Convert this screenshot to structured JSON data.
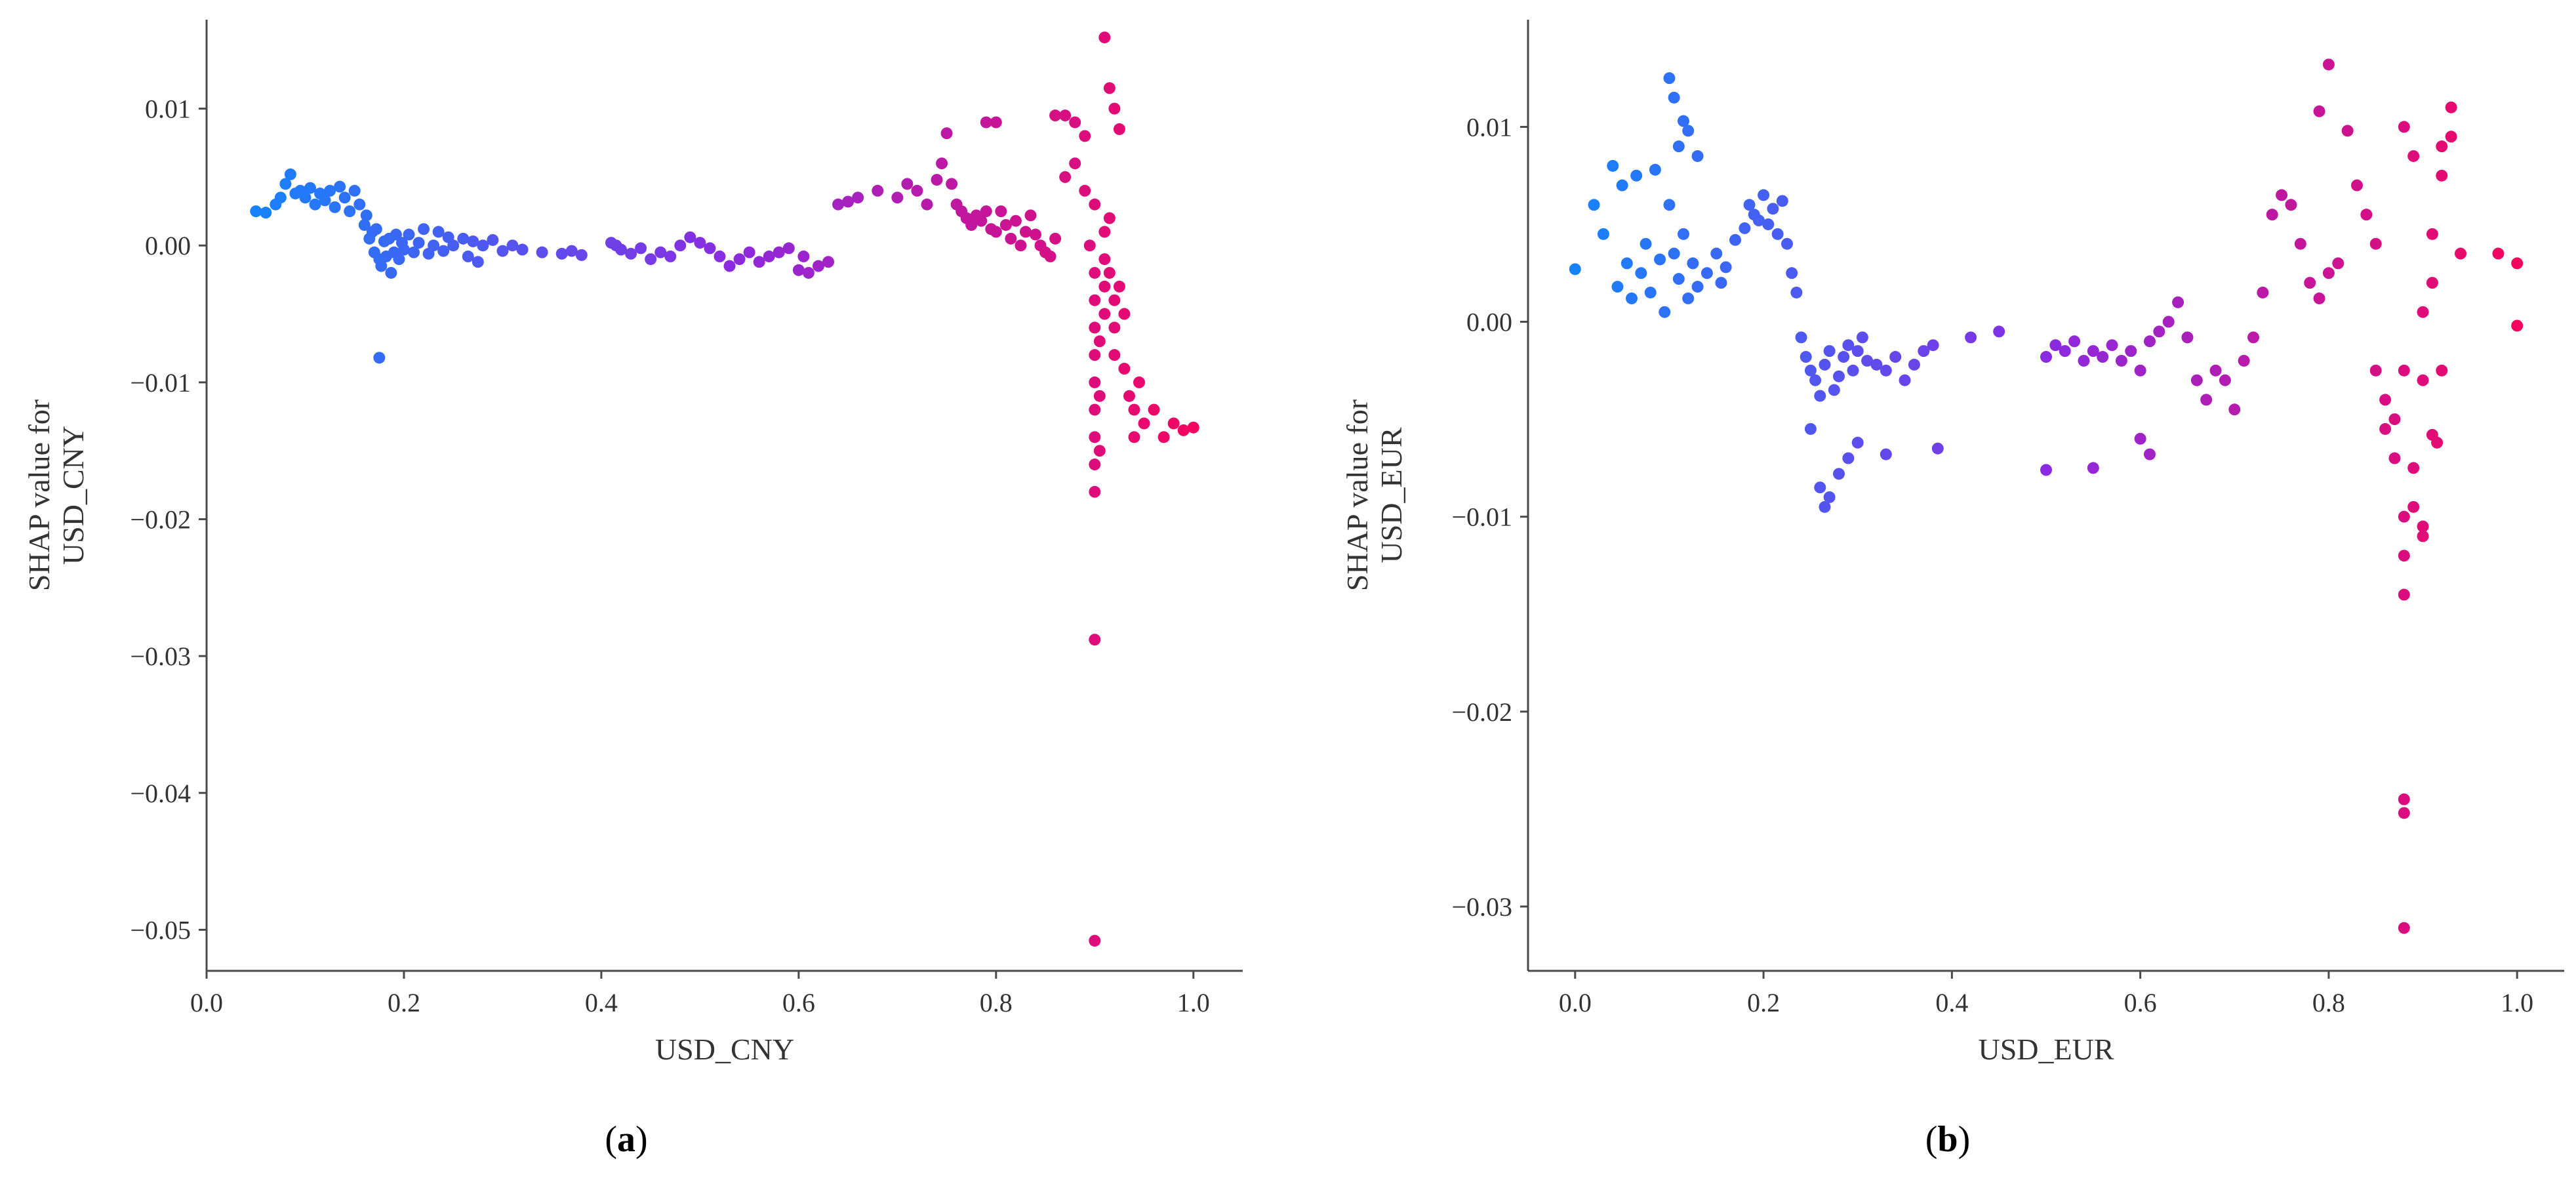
{
  "chart_data": [
    {
      "type": "scatter",
      "panel_label": "a",
      "xlabel": "USD_CNY",
      "ylabel": [
        "SHAP value for",
        "USD_CNY"
      ],
      "xlim": [
        0.0,
        1.05
      ],
      "ylim": [
        -0.053,
        0.0165
      ],
      "xticks": [
        0.0,
        0.2,
        0.4,
        0.6,
        0.8,
        1.0
      ],
      "xtick_labels": [
        "0.0",
        "0.2",
        "0.4",
        "0.6",
        "0.8",
        "1.0"
      ],
      "yticks": [
        0.01,
        0.0,
        -0.01,
        -0.02,
        -0.03,
        -0.04,
        -0.05
      ],
      "ytick_labels": [
        "0.01",
        "0.00",
        "−0.01",
        "−0.02",
        "−0.03",
        "−0.04",
        "−0.05"
      ],
      "grid": false,
      "colormap": [
        "#0a8cff",
        "#8a2be2",
        "#ff0051"
      ],
      "points": [
        [
          0.05,
          0.0025
        ],
        [
          0.06,
          0.0024
        ],
        [
          0.07,
          0.003
        ],
        [
          0.075,
          0.0035
        ],
        [
          0.08,
          0.0045
        ],
        [
          0.085,
          0.0052
        ],
        [
          0.09,
          0.0038
        ],
        [
          0.095,
          0.004
        ],
        [
          0.1,
          0.0035
        ],
        [
          0.105,
          0.0042
        ],
        [
          0.11,
          0.003
        ],
        [
          0.115,
          0.0038
        ],
        [
          0.12,
          0.0033
        ],
        [
          0.125,
          0.004
        ],
        [
          0.13,
          0.0028
        ],
        [
          0.135,
          0.0043
        ],
        [
          0.14,
          0.0035
        ],
        [
          0.145,
          0.0025
        ],
        [
          0.15,
          0.004
        ],
        [
          0.155,
          0.003
        ],
        [
          0.16,
          0.0015
        ],
        [
          0.162,
          0.0022
        ],
        [
          0.165,
          0.0005
        ],
        [
          0.168,
          0.001
        ],
        [
          0.17,
          -0.0005
        ],
        [
          0.172,
          0.0012
        ],
        [
          0.175,
          -0.001
        ],
        [
          0.177,
          -0.0015
        ],
        [
          0.18,
          0.0003
        ],
        [
          0.182,
          -0.0008
        ],
        [
          0.185,
          0.0005
        ],
        [
          0.187,
          -0.002
        ],
        [
          0.19,
          -0.0005
        ],
        [
          0.192,
          0.0008
        ],
        [
          0.195,
          -0.001
        ],
        [
          0.198,
          0.0002
        ],
        [
          0.2,
          -0.0003
        ],
        [
          0.205,
          0.0008
        ],
        [
          0.21,
          -0.0005
        ],
        [
          0.215,
          0.0002
        ],
        [
          0.22,
          0.0012
        ],
        [
          0.225,
          -0.0006
        ],
        [
          0.23,
          0.0
        ],
        [
          0.235,
          0.001
        ],
        [
          0.24,
          -0.0004
        ],
        [
          0.245,
          0.0006
        ],
        [
          0.25,
          0.0
        ],
        [
          0.26,
          0.0005
        ],
        [
          0.265,
          -0.0008
        ],
        [
          0.27,
          0.0003
        ],
        [
          0.275,
          -0.0012
        ],
        [
          0.28,
          0.0
        ],
        [
          0.29,
          0.0004
        ],
        [
          0.3,
          -0.0004
        ],
        [
          0.31,
          0.0
        ],
        [
          0.32,
          -0.0003
        ],
        [
          0.34,
          -0.0005
        ],
        [
          0.36,
          -0.0006
        ],
        [
          0.37,
          -0.0004
        ],
        [
          0.38,
          -0.0007
        ],
        [
          0.41,
          0.0002
        ],
        [
          0.415,
          0.0
        ],
        [
          0.42,
          -0.0003
        ],
        [
          0.43,
          -0.0006
        ],
        [
          0.44,
          -0.0002
        ],
        [
          0.45,
          -0.001
        ],
        [
          0.46,
          -0.0005
        ],
        [
          0.47,
          -0.0008
        ],
        [
          0.48,
          0.0
        ],
        [
          0.49,
          0.0006
        ],
        [
          0.5,
          0.0002
        ],
        [
          0.51,
          -0.0002
        ],
        [
          0.52,
          -0.0008
        ],
        [
          0.53,
          -0.0015
        ],
        [
          0.54,
          -0.001
        ],
        [
          0.55,
          -0.0005
        ],
        [
          0.56,
          -0.0012
        ],
        [
          0.57,
          -0.0008
        ],
        [
          0.58,
          -0.0005
        ],
        [
          0.59,
          -0.0002
        ],
        [
          0.6,
          -0.0018
        ],
        [
          0.605,
          -0.0008
        ],
        [
          0.61,
          -0.002
        ],
        [
          0.62,
          -0.0015
        ],
        [
          0.63,
          -0.0012
        ],
        [
          0.175,
          -0.0082
        ],
        [
          0.64,
          0.003
        ],
        [
          0.65,
          0.0032
        ],
        [
          0.66,
          0.0035
        ],
        [
          0.68,
          0.004
        ],
        [
          0.7,
          0.0035
        ],
        [
          0.71,
          0.0045
        ],
        [
          0.72,
          0.004
        ],
        [
          0.73,
          0.003
        ],
        [
          0.74,
          0.0048
        ],
        [
          0.745,
          0.006
        ],
        [
          0.75,
          0.0082
        ],
        [
          0.755,
          0.0045
        ],
        [
          0.76,
          0.003
        ],
        [
          0.765,
          0.0025
        ],
        [
          0.77,
          0.002
        ],
        [
          0.775,
          0.0015
        ],
        [
          0.78,
          0.0022
        ],
        [
          0.785,
          0.0018
        ],
        [
          0.79,
          0.0025
        ],
        [
          0.795,
          0.0012
        ],
        [
          0.8,
          0.001
        ],
        [
          0.805,
          0.0025
        ],
        [
          0.81,
          0.0015
        ],
        [
          0.815,
          0.0005
        ],
        [
          0.82,
          0.0018
        ],
        [
          0.825,
          0.0
        ],
        [
          0.83,
          0.001
        ],
        [
          0.835,
          0.0022
        ],
        [
          0.84,
          0.0008
        ],
        [
          0.845,
          0.0
        ],
        [
          0.85,
          -0.0005
        ],
        [
          0.855,
          -0.0008
        ],
        [
          0.86,
          0.0005
        ],
        [
          0.79,
          0.009
        ],
        [
          0.8,
          0.009
        ],
        [
          0.86,
          0.0095
        ],
        [
          0.87,
          0.0095
        ],
        [
          0.88,
          0.009
        ],
        [
          0.89,
          0.008
        ],
        [
          0.91,
          0.0152
        ],
        [
          0.915,
          0.0115
        ],
        [
          0.92,
          0.01
        ],
        [
          0.925,
          0.0085
        ],
        [
          0.87,
          0.005
        ],
        [
          0.88,
          0.006
        ],
        [
          0.89,
          0.004
        ],
        [
          0.9,
          0.003
        ],
        [
          0.895,
          0.0
        ],
        [
          0.9,
          -0.002
        ],
        [
          0.9,
          -0.004
        ],
        [
          0.9,
          -0.006
        ],
        [
          0.9,
          -0.008
        ],
        [
          0.9,
          -0.01
        ],
        [
          0.9,
          -0.012
        ],
        [
          0.9,
          -0.014
        ],
        [
          0.9,
          -0.016
        ],
        [
          0.9,
          -0.018
        ],
        [
          0.905,
          -0.015
        ],
        [
          0.905,
          -0.011
        ],
        [
          0.905,
          -0.007
        ],
        [
          0.91,
          -0.005
        ],
        [
          0.91,
          -0.003
        ],
        [
          0.91,
          -0.001
        ],
        [
          0.91,
          0.001
        ],
        [
          0.915,
          0.002
        ],
        [
          0.915,
          -0.002
        ],
        [
          0.92,
          -0.004
        ],
        [
          0.92,
          -0.006
        ],
        [
          0.92,
          -0.008
        ],
        [
          0.925,
          -0.003
        ],
        [
          0.93,
          -0.005
        ],
        [
          0.93,
          -0.009
        ],
        [
          0.935,
          -0.011
        ],
        [
          0.94,
          -0.012
        ],
        [
          0.94,
          -0.014
        ],
        [
          0.945,
          -0.01
        ],
        [
          0.95,
          -0.013
        ],
        [
          0.96,
          -0.012
        ],
        [
          0.97,
          -0.014
        ],
        [
          0.98,
          -0.013
        ],
        [
          0.99,
          -0.0135
        ],
        [
          1.0,
          -0.0133
        ],
        [
          0.9,
          -0.0288
        ],
        [
          0.9,
          -0.0508
        ]
      ]
    },
    {
      "type": "scatter",
      "panel_label": "b",
      "xlabel": "USD_EUR",
      "ylabel": [
        "SHAP value for",
        "USD_EUR"
      ],
      "xlim": [
        -0.05,
        1.05
      ],
      "ylim": [
        -0.0333,
        0.0155
      ],
      "xticks": [
        0.0,
        0.2,
        0.4,
        0.6,
        0.8,
        1.0
      ],
      "xtick_labels": [
        "0.0",
        "0.2",
        "0.4",
        "0.6",
        "0.8",
        "1.0"
      ],
      "yticks": [
        0.01,
        0.0,
        -0.01,
        -0.02,
        -0.03
      ],
      "ytick_labels": [
        "0.01",
        "0.00",
        "−0.01",
        "−0.02",
        "−0.03"
      ],
      "grid": false,
      "colormap": [
        "#0a8cff",
        "#8a2be2",
        "#ff0051"
      ],
      "points": [
        [
          0.0,
          0.0027
        ],
        [
          0.02,
          0.006
        ],
        [
          0.03,
          0.0045
        ],
        [
          0.04,
          0.008
        ],
        [
          0.045,
          0.0018
        ],
        [
          0.05,
          0.007
        ],
        [
          0.055,
          0.003
        ],
        [
          0.06,
          0.0012
        ],
        [
          0.065,
          0.0075
        ],
        [
          0.07,
          0.0025
        ],
        [
          0.075,
          0.004
        ],
        [
          0.08,
          0.0015
        ],
        [
          0.085,
          0.0078
        ],
        [
          0.09,
          0.0032
        ],
        [
          0.095,
          0.0005
        ],
        [
          0.1,
          0.0125
        ],
        [
          0.105,
          0.0115
        ],
        [
          0.11,
          0.009
        ],
        [
          0.115,
          0.0103
        ],
        [
          0.12,
          0.0098
        ],
        [
          0.13,
          0.0085
        ],
        [
          0.1,
          0.006
        ],
        [
          0.105,
          0.0035
        ],
        [
          0.11,
          0.0022
        ],
        [
          0.115,
          0.0045
        ],
        [
          0.12,
          0.0012
        ],
        [
          0.125,
          0.003
        ],
        [
          0.13,
          0.0018
        ],
        [
          0.14,
          0.0025
        ],
        [
          0.15,
          0.0035
        ],
        [
          0.155,
          0.002
        ],
        [
          0.16,
          0.0028
        ],
        [
          0.17,
          0.0042
        ],
        [
          0.18,
          0.0048
        ],
        [
          0.185,
          0.006
        ],
        [
          0.19,
          0.0055
        ],
        [
          0.195,
          0.0052
        ],
        [
          0.2,
          0.0065
        ],
        [
          0.205,
          0.005
        ],
        [
          0.21,
          0.0058
        ],
        [
          0.215,
          0.0045
        ],
        [
          0.22,
          0.0062
        ],
        [
          0.225,
          0.004
        ],
        [
          0.23,
          0.0025
        ],
        [
          0.235,
          0.0015
        ],
        [
          0.24,
          -0.0008
        ],
        [
          0.245,
          -0.0018
        ],
        [
          0.25,
          -0.0025
        ],
        [
          0.255,
          -0.003
        ],
        [
          0.26,
          -0.0038
        ],
        [
          0.265,
          -0.0022
        ],
        [
          0.27,
          -0.0015
        ],
        [
          0.275,
          -0.0035
        ],
        [
          0.28,
          -0.0028
        ],
        [
          0.285,
          -0.0018
        ],
        [
          0.29,
          -0.0012
        ],
        [
          0.295,
          -0.0025
        ],
        [
          0.3,
          -0.0015
        ],
        [
          0.305,
          -0.0008
        ],
        [
          0.31,
          -0.002
        ],
        [
          0.32,
          -0.0022
        ],
        [
          0.33,
          -0.0025
        ],
        [
          0.34,
          -0.0018
        ],
        [
          0.35,
          -0.003
        ],
        [
          0.36,
          -0.0022
        ],
        [
          0.37,
          -0.0015
        ],
        [
          0.38,
          -0.0012
        ],
        [
          0.25,
          -0.0055
        ],
        [
          0.26,
          -0.0085
        ],
        [
          0.265,
          -0.0095
        ],
        [
          0.27,
          -0.009
        ],
        [
          0.28,
          -0.0078
        ],
        [
          0.29,
          -0.007
        ],
        [
          0.3,
          -0.0062
        ],
        [
          0.33,
          -0.0068
        ],
        [
          0.385,
          -0.0065
        ],
        [
          0.42,
          -0.0008
        ],
        [
          0.45,
          -0.0005
        ],
        [
          0.5,
          -0.0018
        ],
        [
          0.51,
          -0.0012
        ],
        [
          0.52,
          -0.0015
        ],
        [
          0.53,
          -0.001
        ],
        [
          0.54,
          -0.002
        ],
        [
          0.55,
          -0.0015
        ],
        [
          0.56,
          -0.0018
        ],
        [
          0.57,
          -0.0012
        ],
        [
          0.58,
          -0.002
        ],
        [
          0.59,
          -0.0015
        ],
        [
          0.6,
          -0.0025
        ],
        [
          0.61,
          -0.001
        ],
        [
          0.62,
          -0.0005
        ],
        [
          0.63,
          0.0
        ],
        [
          0.64,
          0.001
        ],
        [
          0.65,
          -0.0008
        ],
        [
          0.5,
          -0.0076
        ],
        [
          0.55,
          -0.0075
        ],
        [
          0.6,
          -0.006
        ],
        [
          0.61,
          -0.0068
        ],
        [
          0.66,
          -0.003
        ],
        [
          0.67,
          -0.004
        ],
        [
          0.68,
          -0.0025
        ],
        [
          0.69,
          -0.003
        ],
        [
          0.7,
          -0.0045
        ],
        [
          0.71,
          -0.002
        ],
        [
          0.72,
          -0.0008
        ],
        [
          0.73,
          0.0015
        ],
        [
          0.74,
          0.0055
        ],
        [
          0.75,
          0.0065
        ],
        [
          0.76,
          0.006
        ],
        [
          0.77,
          0.004
        ],
        [
          0.78,
          0.002
        ],
        [
          0.79,
          0.0012
        ],
        [
          0.8,
          0.0025
        ],
        [
          0.81,
          0.003
        ],
        [
          0.8,
          0.0132
        ],
        [
          0.79,
          0.0108
        ],
        [
          0.82,
          0.0098
        ],
        [
          0.83,
          0.007
        ],
        [
          0.84,
          0.0055
        ],
        [
          0.85,
          0.004
        ],
        [
          0.85,
          -0.0025
        ],
        [
          0.86,
          -0.004
        ],
        [
          0.86,
          -0.0055
        ],
        [
          0.87,
          -0.005
        ],
        [
          0.87,
          -0.007
        ],
        [
          0.88,
          -0.0025
        ],
        [
          0.88,
          -0.01
        ],
        [
          0.88,
          -0.012
        ],
        [
          0.88,
          -0.014
        ],
        [
          0.89,
          -0.0095
        ],
        [
          0.89,
          -0.0075
        ],
        [
          0.9,
          -0.011
        ],
        [
          0.9,
          -0.0105
        ],
        [
          0.9,
          -0.003
        ],
        [
          0.9,
          0.0005
        ],
        [
          0.91,
          0.002
        ],
        [
          0.91,
          0.0045
        ],
        [
          0.92,
          0.0075
        ],
        [
          0.92,
          0.009
        ],
        [
          0.93,
          0.0095
        ],
        [
          0.93,
          0.011
        ],
        [
          0.94,
          0.0035
        ],
        [
          0.91,
          -0.0058
        ],
        [
          0.915,
          -0.0062
        ],
        [
          0.92,
          -0.0025
        ],
        [
          0.88,
          0.01
        ],
        [
          0.89,
          0.0085
        ],
        [
          0.98,
          0.0035
        ],
        [
          1.0,
          0.003
        ],
        [
          1.0,
          -0.0002
        ],
        [
          0.88,
          -0.0245
        ],
        [
          0.88,
          -0.0252
        ],
        [
          0.88,
          -0.0311
        ]
      ]
    }
  ],
  "captions": [
    "a",
    "b"
  ]
}
